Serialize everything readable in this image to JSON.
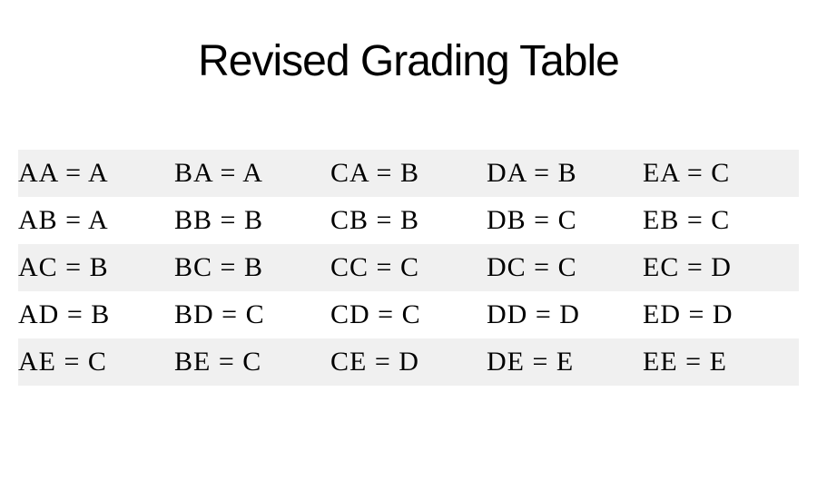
{
  "title": "Revised Grading Table",
  "table": {
    "type": "table",
    "background_color": "#ffffff",
    "stripe_color": "#f0f0f0",
    "text_color": "#000000",
    "title_fontsize": 48,
    "cell_fontsize": 30,
    "columns": 5,
    "rows": [
      {
        "striped": true,
        "cells": [
          "AA = A",
          "BA = A",
          "CA = B",
          "DA = B",
          "EA = C"
        ]
      },
      {
        "striped": false,
        "cells": [
          "AB = A",
          "BB = B",
          "CB = B",
          "DB = C",
          "EB = C"
        ]
      },
      {
        "striped": true,
        "cells": [
          "AC = B",
          "BC = B",
          "CC = C",
          "DC = C",
          "EC = D"
        ]
      },
      {
        "striped": false,
        "cells": [
          "AD = B",
          "BD = C",
          "CD = C",
          "DD = D",
          "ED = D"
        ]
      },
      {
        "striped": true,
        "cells": [
          "AE = C",
          "BE = C",
          "CE = D",
          "DE = E",
          "EE = E"
        ]
      }
    ]
  }
}
